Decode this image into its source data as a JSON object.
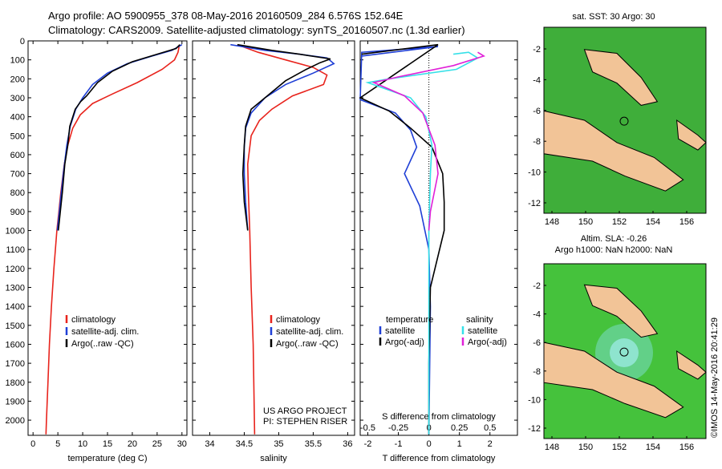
{
  "header": {
    "line1": "Argo profile: AO 5900955_378 08-May-2016 20160509_284 6.576S 152.64E",
    "line2": "Climatology: CARS2009. Satellite-adjusted climatology: synTS_20160507.nc (1.3d earlier)"
  },
  "colors": {
    "climatology": "#e8231c",
    "satellite": "#1f3fd6",
    "argo": "#000000",
    "sal_sat": "#35e0e8",
    "sal_argo": "#e020d8",
    "land": "#f2c497",
    "sea": "#3ab23a"
  },
  "project_note": [
    "US ARGO PROJECT",
    "PI: STEPHEN RISER"
  ],
  "legend_profile": [
    "climatology",
    "satellite-adj. clim.",
    "Argo(..raw -QC)"
  ],
  "legend_diff": {
    "temperature_title": "temperature",
    "salinity_title": "salinity",
    "satellite": "satellite",
    "argo": "Argo(-adj)"
  },
  "map_sst_title": "sat. SST: 30 Argo: 30",
  "map_sla_title": [
    "Altim. SLA: -0.26",
    "Argo h1000: NaN h2000: NaN"
  ],
  "stamp": "©IMOS 14-May-2016 20:41:29",
  "chart_data": [
    {
      "type": "line",
      "panel": "temperature",
      "xlabel": "temperature (deg C)",
      "ylabel": "",
      "xlim": [
        -1,
        31
      ],
      "ylim": [
        2080,
        0
      ],
      "xticks": [
        "0",
        "5",
        "10",
        "15",
        "20",
        "25",
        "30"
      ],
      "yticks": [
        "0",
        "100",
        "200",
        "300",
        "400",
        "500",
        "600",
        "700",
        "800",
        "900",
        "1000",
        "1100",
        "1200",
        "1300",
        "1400",
        "1500",
        "1600",
        "1700",
        "1800",
        "1900",
        "2000"
      ],
      "series": [
        {
          "name": "climatology",
          "color": "#e8231c",
          "points": [
            [
              29.5,
              20
            ],
            [
              29.2,
              60
            ],
            [
              28.5,
              100
            ],
            [
              26,
              150
            ],
            [
              21,
              220
            ],
            [
              16,
              280
            ],
            [
              12,
              330
            ],
            [
              9.5,
              390
            ],
            [
              8,
              460
            ],
            [
              7,
              550
            ],
            [
              6.3,
              650
            ],
            [
              5.6,
              800
            ],
            [
              5.2,
              900
            ],
            [
              4.8,
              1000
            ],
            [
              4.2,
              1200
            ],
            [
              3.7,
              1400
            ],
            [
              3.3,
              1600
            ],
            [
              3.0,
              1800
            ],
            [
              2.7,
              2000
            ],
            [
              2.6,
              2075
            ]
          ]
        },
        {
          "name": "satellite-adj. clim.",
          "color": "#1f3fd6",
          "points": [
            [
              30,
              20
            ],
            [
              28,
              50
            ],
            [
              24,
              80
            ],
            [
              19,
              120
            ],
            [
              15,
              170
            ],
            [
              12,
              230
            ],
            [
              10,
              300
            ],
            [
              8.6,
              360
            ],
            [
              7.5,
              450
            ],
            [
              6.8,
              550
            ],
            [
              6.1,
              700
            ],
            [
              5.5,
              850
            ],
            [
              4.9,
              1000
            ]
          ]
        },
        {
          "name": "Argo(..raw -QC)",
          "color": "#000000",
          "points": [
            [
              29.6,
              20
            ],
            [
              28.8,
              40
            ],
            [
              25,
              70
            ],
            [
              20,
              110
            ],
            [
              16,
              160
            ],
            [
              13,
              220
            ],
            [
              10.8,
              290
            ],
            [
              9.6,
              320
            ],
            [
              8.5,
              360
            ],
            [
              7.4,
              450
            ],
            [
              7.0,
              550
            ],
            [
              6.4,
              650
            ],
            [
              5.9,
              800
            ],
            [
              5.5,
              900
            ],
            [
              5.1,
              1000
            ]
          ]
        }
      ]
    },
    {
      "type": "line",
      "panel": "salinity",
      "xlabel": "salinity",
      "ylabel": "",
      "xlim": [
        33.75,
        36.1
      ],
      "ylim": [
        2080,
        0
      ],
      "xticks": [
        "34",
        "34.5",
        "35",
        "35.5",
        "36"
      ],
      "series": [
        {
          "name": "climatology",
          "color": "#e8231c",
          "points": [
            [
              34.4,
              20
            ],
            [
              34.7,
              60
            ],
            [
              35.1,
              100
            ],
            [
              35.5,
              140
            ],
            [
              35.7,
              180
            ],
            [
              35.65,
              230
            ],
            [
              35.2,
              290
            ],
            [
              34.9,
              360
            ],
            [
              34.72,
              420
            ],
            [
              34.6,
              500
            ],
            [
              34.55,
              650
            ],
            [
              34.56,
              800
            ],
            [
              34.58,
              1000
            ],
            [
              34.6,
              1300
            ],
            [
              34.63,
              1600
            ],
            [
              34.65,
              2075
            ]
          ]
        },
        {
          "name": "satellite-adj. clim.",
          "color": "#1f3fd6",
          "points": [
            [
              34.3,
              20
            ],
            [
              34.8,
              50
            ],
            [
              35.3,
              70
            ],
            [
              35.7,
              90
            ],
            [
              35.8,
              120
            ],
            [
              35.5,
              170
            ],
            [
              35.1,
              230
            ],
            [
              34.8,
              300
            ],
            [
              34.6,
              380
            ],
            [
              34.52,
              460
            ],
            [
              34.5,
              560
            ],
            [
              34.5,
              700
            ],
            [
              34.52,
              850
            ],
            [
              34.55,
              1000
            ]
          ]
        },
        {
          "name": "Argo(..raw -QC)",
          "color": "#000000",
          "points": [
            [
              34.4,
              20
            ],
            [
              34.9,
              50
            ],
            [
              35.3,
              70
            ],
            [
              35.75,
              95
            ],
            [
              35.6,
              115
            ],
            [
              35.4,
              150
            ],
            [
              35.1,
              210
            ],
            [
              34.8,
              300
            ],
            [
              34.6,
              360
            ],
            [
              34.52,
              450
            ],
            [
              34.5,
              550
            ],
            [
              34.48,
              700
            ],
            [
              34.5,
              850
            ],
            [
              34.55,
              1000
            ]
          ]
        }
      ]
    },
    {
      "type": "line",
      "panel": "difference",
      "xlabel": "T difference from climatology",
      "xlabel_top": "S difference from climatology",
      "xlim": [
        -2.25,
        2.9
      ],
      "ylim": [
        2080,
        0
      ],
      "xticks": [
        "-2",
        "-1",
        "0",
        "1",
        "2"
      ],
      "xticks_top": [
        "-0.5",
        "-0.25",
        "0",
        "0.25",
        "0.5"
      ],
      "series": [
        {
          "name": "temperature satellite",
          "color": "#1f3fd6",
          "points": [
            [
              -2.2,
              80
            ],
            [
              0.3,
              30
            ],
            [
              -2.2,
              60
            ],
            [
              -2.25,
              310
            ],
            [
              -1.1,
              380
            ],
            [
              -0.6,
              470
            ],
            [
              -0.4,
              560
            ],
            [
              -0.8,
              700
            ],
            [
              -0.3,
              870
            ],
            [
              0.0,
              1100
            ],
            [
              0.05,
              1400
            ],
            [
              0.0,
              2075
            ]
          ]
        },
        {
          "name": "temperature Argo(-adj)",
          "color": "#000000",
          "points": [
            [
              -2.2,
              70
            ],
            [
              0.3,
              20
            ],
            [
              -2.25,
              300
            ],
            [
              -1.3,
              370
            ],
            [
              -0.6,
              460
            ],
            [
              0.1,
              560
            ],
            [
              0.45,
              700
            ],
            [
              0.5,
              850
            ],
            [
              0.5,
              1000
            ],
            [
              0.05,
              1300
            ],
            [
              0.0,
              1700
            ],
            [
              0.0,
              2075
            ]
          ]
        },
        {
          "name": "salinity satellite",
          "color": "#35e0e8",
          "points": [
            [
              0.8,
              70
            ],
            [
              1.3,
              60
            ],
            [
              1.6,
              90
            ],
            [
              0.9,
              150
            ],
            [
              -1.3,
              200
            ],
            [
              -2.0,
              220
            ],
            [
              -0.6,
              300
            ],
            [
              -0.1,
              400
            ],
            [
              0.1,
              550
            ],
            [
              0.05,
              700
            ],
            [
              0.0,
              1000
            ],
            [
              0.0,
              1500
            ],
            [
              0.0,
              2075
            ]
          ]
        },
        {
          "name": "salinity Argo(-adj)",
          "color": "#e020d8",
          "points": [
            [
              1.6,
              60
            ],
            [
              1.8,
              80
            ],
            [
              0.8,
              130
            ],
            [
              -1.0,
              190
            ],
            [
              -1.8,
              220
            ],
            [
              -0.8,
              290
            ],
            [
              -0.2,
              380
            ],
            [
              0.2,
              550
            ],
            [
              0.3,
              700
            ],
            [
              0.05,
              900
            ],
            [
              0.0,
              1000
            ]
          ]
        }
      ]
    }
  ],
  "maps": [
    {
      "id": "sst",
      "xticks": [
        "148",
        "150",
        "152",
        "154",
        "156"
      ],
      "yticks": [
        "-2",
        "-4",
        "-6",
        "-8",
        "-10",
        "-12"
      ]
    },
    {
      "id": "sla",
      "xticks": [
        "148",
        "150",
        "152",
        "154",
        "156"
      ],
      "yticks": [
        "-2",
        "-4",
        "-6",
        "-8",
        "-10",
        "-12"
      ]
    }
  ]
}
